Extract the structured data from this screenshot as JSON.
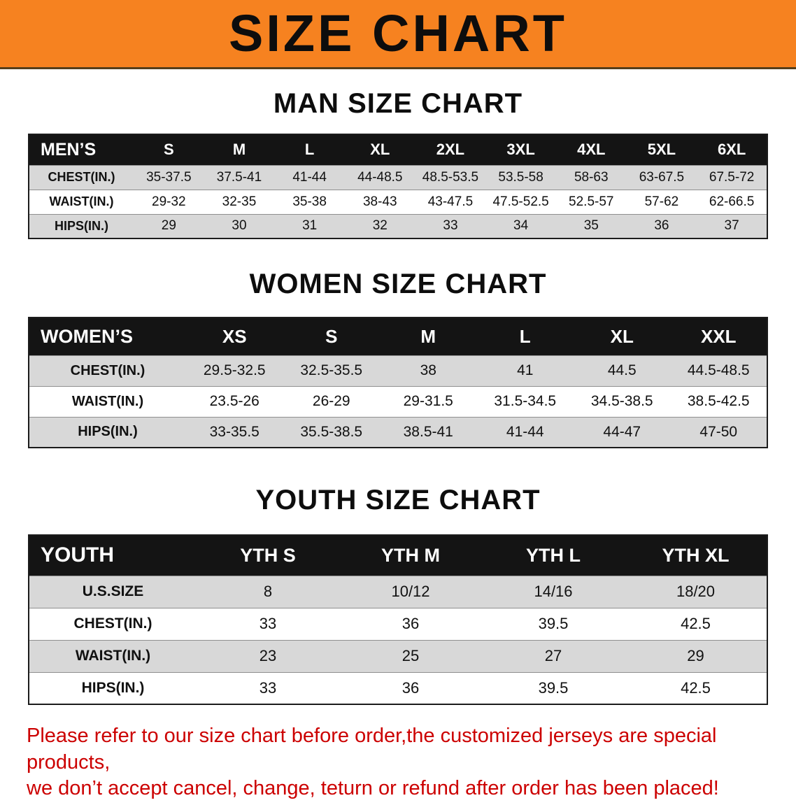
{
  "banner": {
    "title": "SIZE CHART"
  },
  "colors": {
    "banner_bg": "#F68220",
    "header_bg": "#141414",
    "row_alt": "#D8D8D8",
    "accent_red": "#CC0000"
  },
  "sections": {
    "men": {
      "heading": "MAN SIZE CHART",
      "table": {
        "header": [
          "MEN’S",
          "S",
          "M",
          "L",
          "XL",
          "2XL",
          "3XL",
          "4XL",
          "5XL",
          "6XL"
        ],
        "rows": [
          [
            "CHEST(IN.)",
            "35-37.5",
            "37.5-41",
            "41-44",
            "44-48.5",
            "48.5-53.5",
            "53.5-58",
            "58-63",
            "63-67.5",
            "67.5-72"
          ],
          [
            "WAIST(IN.)",
            "29-32",
            "32-35",
            "35-38",
            "38-43",
            "43-47.5",
            "47.5-52.5",
            "52.5-57",
            "57-62",
            "62-66.5"
          ],
          [
            "HIPS(IN.)",
            "29",
            "30",
            "31",
            "32",
            "33",
            "34",
            "35",
            "36",
            "37"
          ]
        ]
      }
    },
    "women": {
      "heading": "WOMEN SIZE CHART",
      "table": {
        "header": [
          "WOMEN’S",
          "XS",
          "S",
          "M",
          "L",
          "XL",
          "XXL"
        ],
        "rows": [
          [
            "CHEST(IN.)",
            "29.5-32.5",
            "32.5-35.5",
            "38",
            "41",
            "44.5",
            "44.5-48.5"
          ],
          [
            "WAIST(IN.)",
            "23.5-26",
            "26-29",
            "29-31.5",
            "31.5-34.5",
            "34.5-38.5",
            "38.5-42.5"
          ],
          [
            "HIPS(IN.)",
            "33-35.5",
            "35.5-38.5",
            "38.5-41",
            "41-44",
            "44-47",
            "47-50"
          ]
        ]
      }
    },
    "youth": {
      "heading": "YOUTH SIZE CHART",
      "table": {
        "header": [
          "YOUTH",
          "YTH S",
          "YTH M",
          "YTH L",
          "YTH XL"
        ],
        "rows": [
          [
            "U.S.SIZE",
            "8",
            "10/12",
            "14/16",
            "18/20"
          ],
          [
            "CHEST(IN.)",
            "33",
            "36",
            "39.5",
            "42.5"
          ],
          [
            "WAIST(IN.)",
            "23",
            "25",
            "27",
            "29"
          ],
          [
            "HIPS(IN.)",
            "33",
            "36",
            "39.5",
            "42.5"
          ]
        ]
      }
    }
  },
  "notice": {
    "line1": "Please refer to our size chart before order,the customized jerseys are special products,",
    "line2": "we don’t accept cancel, change, teturn or refund after order has been placed!"
  }
}
